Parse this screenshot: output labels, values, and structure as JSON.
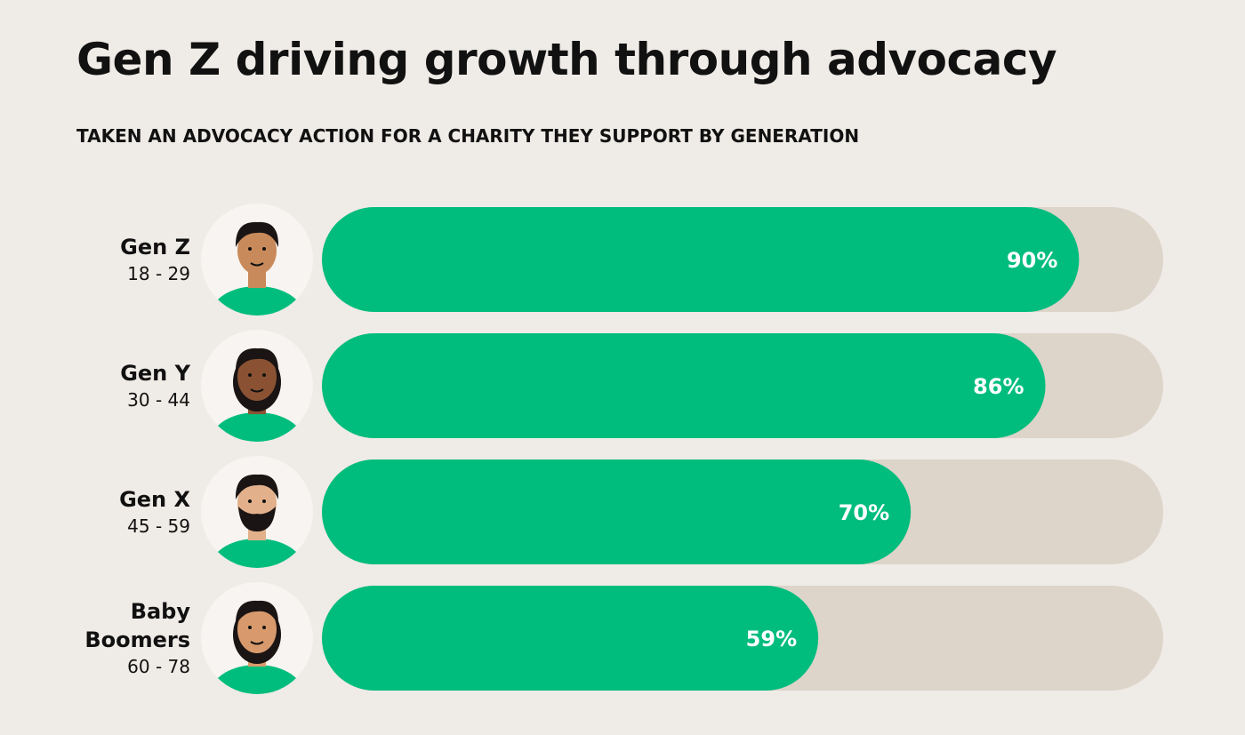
{
  "chart_data": {
    "type": "bar",
    "title": "Gen Z driving growth through advocacy",
    "subtitle": "TAKEN AN ADVOCACY ACTION FOR A CHARITY THEY SUPPORT BY GENERATION",
    "categories": [
      "Gen Z",
      "Gen Y",
      "Gen X",
      "Baby Boomers"
    ],
    "age_ranges": [
      "18 - 29",
      "30 - 44",
      "45 - 59",
      "60 - 78"
    ],
    "values": [
      90,
      86,
      70,
      59
    ],
    "value_labels": [
      "90%",
      "86%",
      "70%",
      "59%"
    ],
    "color": "#00bd7e",
    "track_color": "#ddd4ca",
    "xlim": [
      0,
      100
    ]
  }
}
